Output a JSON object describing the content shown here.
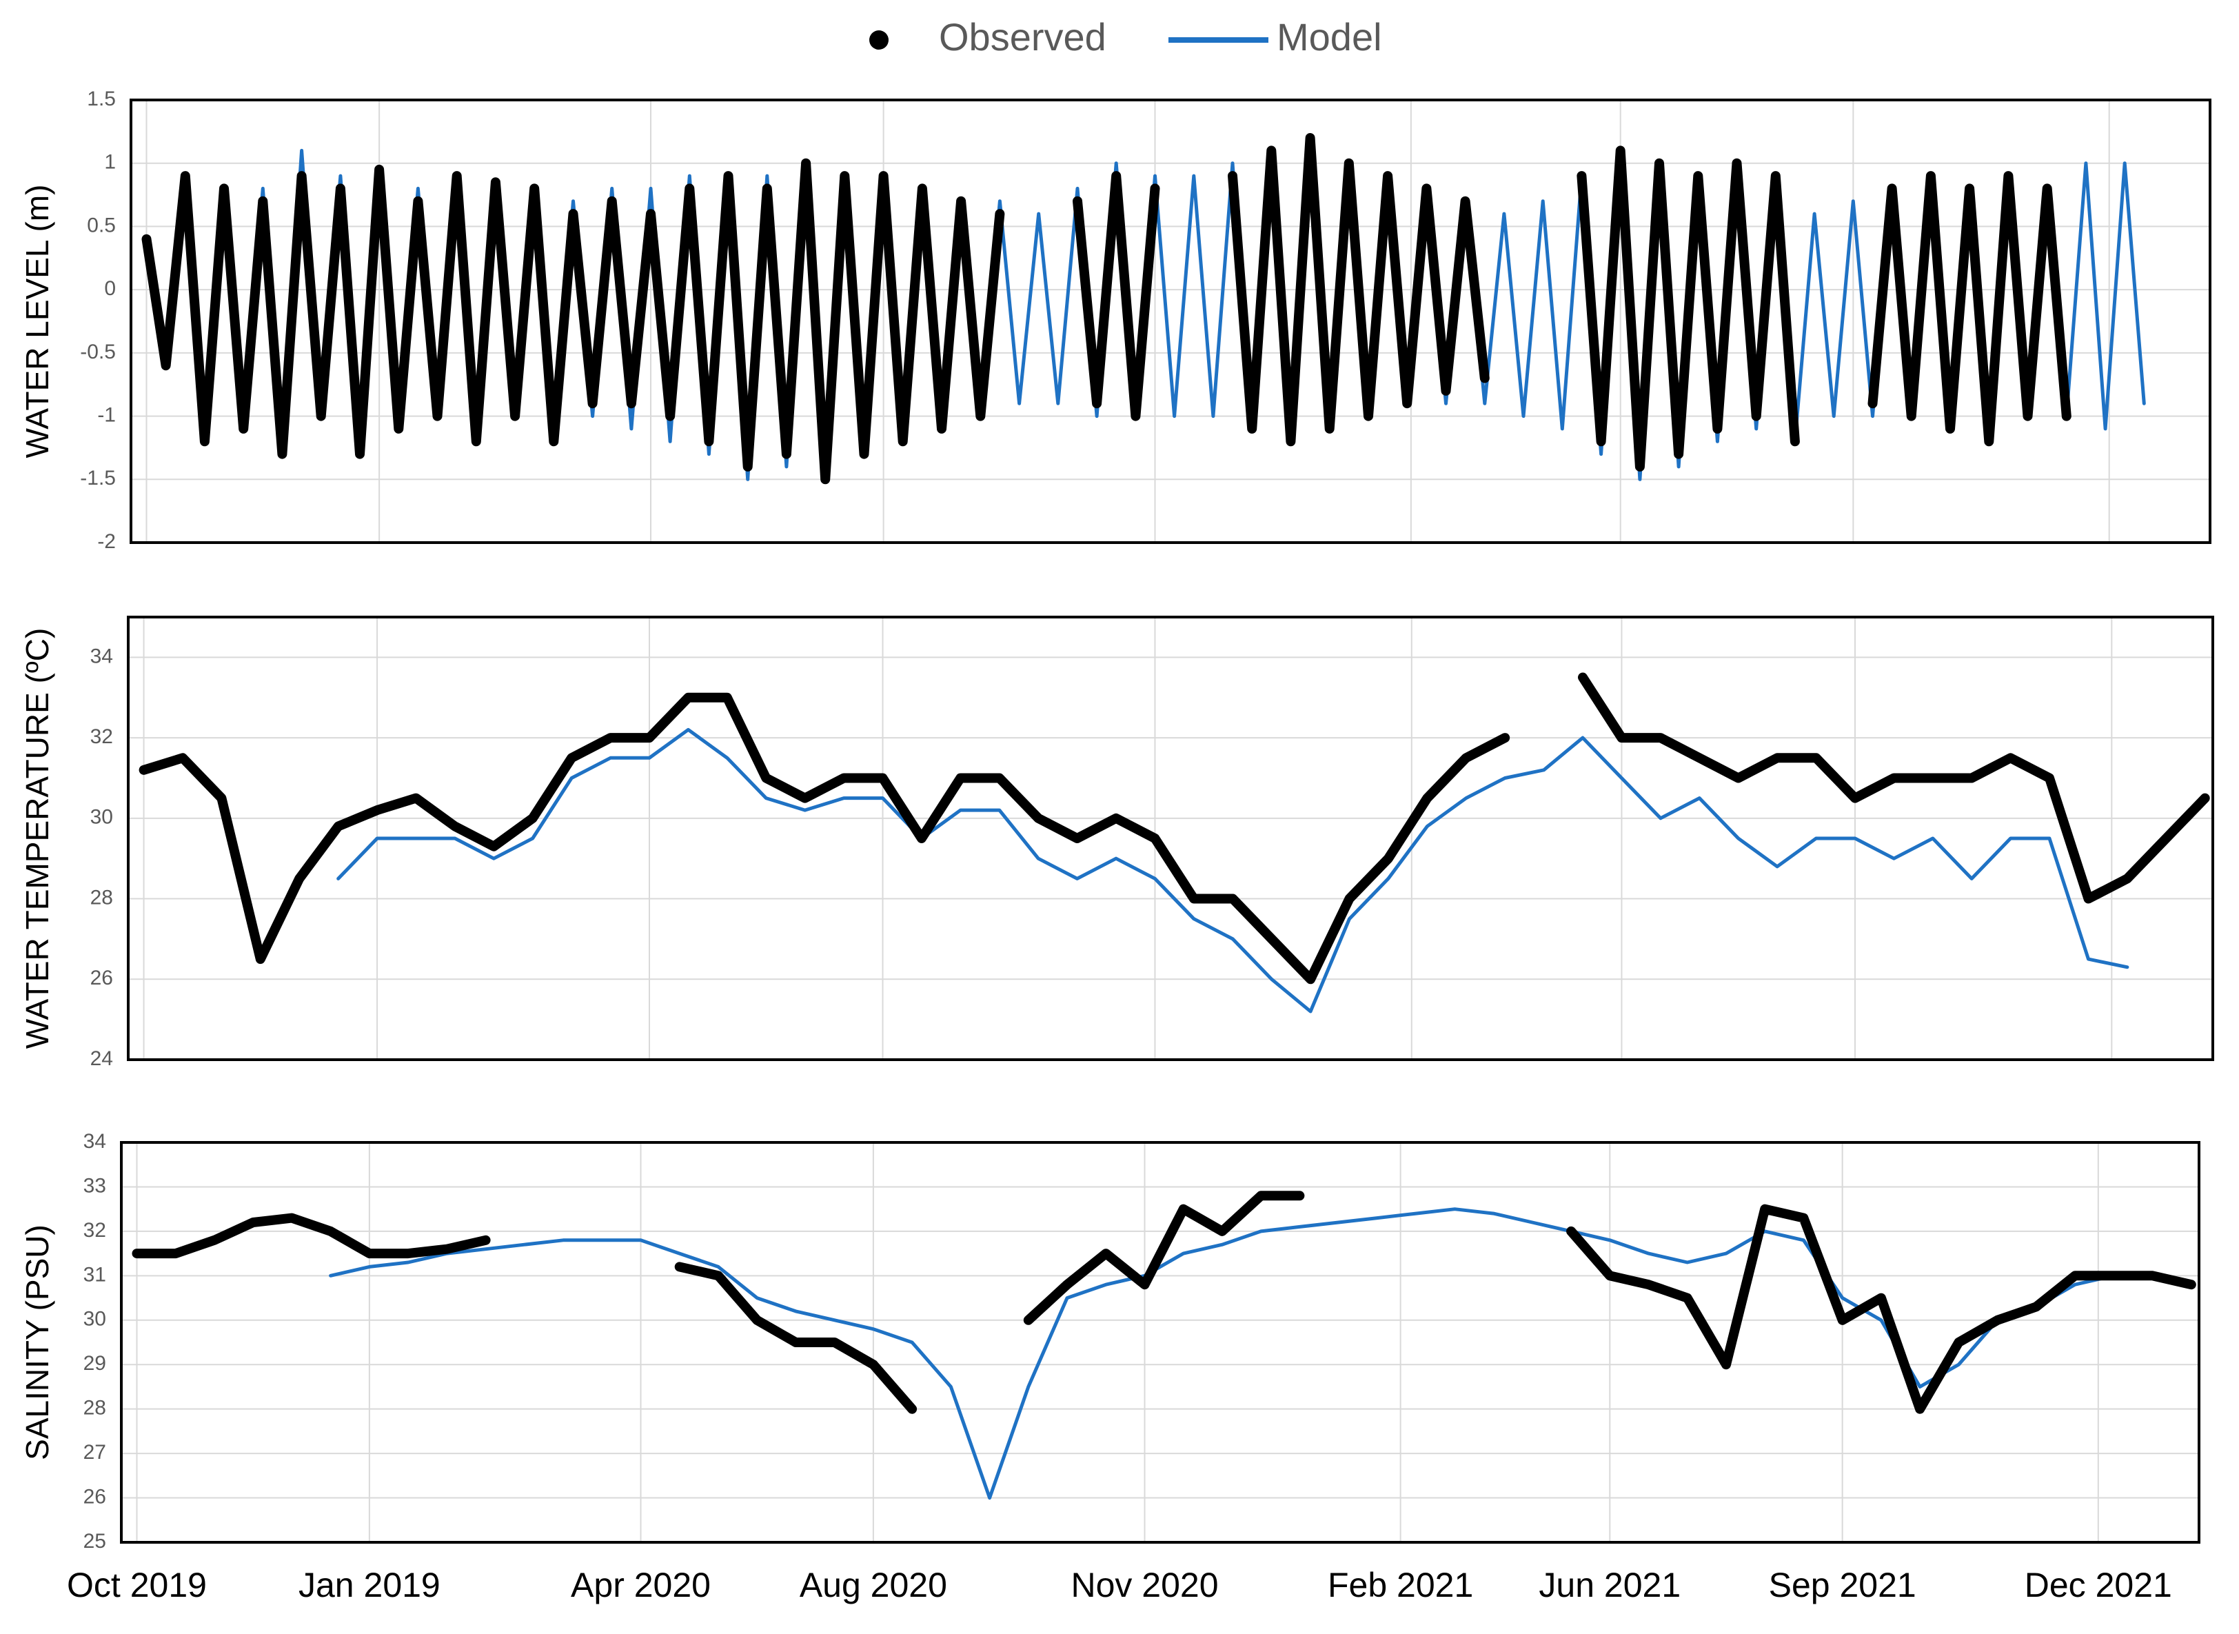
{
  "chart_data": [
    {
      "type": "line",
      "ylabel": "WATER LEVEL (m)",
      "grid": true,
      "ylim": [
        -2,
        1.5
      ],
      "yticks": [
        -2,
        -1.5,
        -1,
        -0.5,
        0,
        0.5,
        1,
        1.5
      ],
      "x": [
        0,
        0.25,
        0.5,
        0.75,
        1,
        1.25,
        1.5,
        1.75,
        2,
        2.25,
        2.5,
        2.75,
        3,
        3.25,
        3.5,
        3.75,
        4,
        4.25,
        4.5,
        4.75,
        5,
        5.25,
        5.5,
        5.75,
        6,
        6.25,
        6.5,
        6.75,
        7,
        7.25,
        7.5,
        7.75,
        8,
        8.25,
        8.5,
        8.75,
        9,
        9.25,
        9.5,
        9.75,
        10,
        10.25,
        10.5,
        10.75,
        11,
        11.25,
        11.5,
        11.75,
        12,
        12.25,
        12.5,
        12.75,
        13,
        13.25,
        13.5,
        13.75,
        14,
        14.25,
        14.5,
        14.75,
        15,
        15.25,
        15.5,
        15.75,
        16,
        16.25,
        16.5,
        16.75,
        17,
        17.25,
        17.5,
        17.75,
        18,
        18.25,
        18.5,
        18.75,
        19,
        19.25,
        19.5,
        19.75,
        20,
        20.25,
        20.5,
        20.75,
        21,
        21.25,
        21.5,
        21.75,
        22,
        22.25,
        22.5,
        22.75,
        23,
        23.25,
        23.5,
        23.75,
        24,
        24.25,
        24.5,
        24.75,
        25,
        25.25,
        25.5,
        25.75,
        26
      ],
      "series": [
        {
          "name": "Observed",
          "color": "#000000",
          "values": [
            0.4,
            -0.6,
            0.9,
            -1.2,
            0.8,
            -1.1,
            0.7,
            -1.3,
            0.9,
            -1.0,
            0.8,
            -1.3,
            0.95,
            -1.1,
            0.7,
            -1.0,
            0.9,
            -1.2,
            0.85,
            -1.0,
            0.8,
            -1.2,
            0.6,
            -0.9,
            0.7,
            -0.9,
            0.6,
            -1.0,
            0.8,
            -1.2,
            0.9,
            -1.4,
            0.8,
            -1.3,
            1.0,
            -1.5,
            0.9,
            -1.3,
            0.9,
            -1.2,
            0.8,
            -1.1,
            0.7,
            -1.0,
            0.6,
            null,
            null,
            null,
            0.7,
            -0.9,
            0.9,
            -1.0,
            0.8,
            null,
            null,
            null,
            0.9,
            -1.1,
            1.1,
            -1.2,
            1.2,
            -1.1,
            1.0,
            -1.0,
            0.9,
            -0.9,
            0.8,
            -0.8,
            0.7,
            -0.7,
            null,
            null,
            null,
            null,
            0.9,
            -1.2,
            1.1,
            -1.4,
            1.0,
            -1.3,
            0.9,
            -1.1,
            1.0,
            -1.0,
            0.9,
            -1.2,
            null,
            null,
            null,
            -0.9,
            0.8,
            -1.0,
            0.9,
            -1.1,
            0.8,
            -1.2,
            0.9,
            -1.0,
            0.8,
            -1.0,
            null,
            null,
            null,
            null,
            null
          ]
        },
        {
          "name": "Model",
          "color": "#1f72c4",
          "values": [
            0.3,
            -0.5,
            0.8,
            -1.1,
            0.7,
            -1.0,
            0.8,
            -1.2,
            1.1,
            -1.0,
            0.9,
            -1.2,
            0.9,
            -1.0,
            0.8,
            -1.0,
            0.9,
            -1.1,
            0.8,
            -1.0,
            0.8,
            -1.1,
            0.7,
            -1.0,
            0.8,
            -1.1,
            0.8,
            -1.2,
            0.9,
            -1.3,
            0.9,
            -1.5,
            0.9,
            -1.4,
            1.0,
            -1.4,
            0.9,
            -1.3,
            0.8,
            -1.2,
            0.8,
            -1.1,
            0.7,
            -1.0,
            0.7,
            -0.9,
            0.6,
            -0.9,
            0.8,
            -1.0,
            1.0,
            -1.0,
            0.9,
            -1.0,
            0.9,
            -1.0,
            1.0,
            -1.1,
            1.1,
            -1.2,
            1.1,
            -1.1,
            1.0,
            -1.0,
            0.9,
            -0.9,
            0.8,
            -0.9,
            0.7,
            -0.9,
            0.6,
            -1.0,
            0.7,
            -1.1,
            0.9,
            -1.3,
            1.0,
            -1.5,
            1.0,
            -1.4,
            0.9,
            -1.2,
            0.9,
            -1.1,
            0.9,
            -1.2,
            0.6,
            -1.0,
            0.7,
            -1.0,
            0.8,
            -1.0,
            0.9,
            -1.1,
            0.8,
            -1.2,
            0.9,
            -1.0,
            0.8,
            -1.0,
            1.0,
            -1.1,
            1.0,
            -0.9,
            null
          ]
        }
      ]
    },
    {
      "type": "line",
      "ylabel": "WATER TEMPERATURE (ºC)",
      "grid": true,
      "ylim": [
        24,
        35
      ],
      "yticks": [
        24,
        26,
        28,
        30,
        32,
        34
      ],
      "x": [
        0,
        0.5,
        1,
        1.5,
        2,
        2.5,
        3,
        3.5,
        4,
        4.5,
        5,
        5.5,
        6,
        6.5,
        7,
        7.5,
        8,
        8.5,
        9,
        9.5,
        10,
        10.5,
        11,
        11.5,
        12,
        12.5,
        13,
        13.5,
        14,
        14.5,
        15,
        15.5,
        16,
        16.5,
        17,
        17.5,
        18,
        18.5,
        19,
        19.5,
        20,
        20.5,
        21,
        21.5,
        22,
        22.5,
        23,
        23.5,
        24,
        24.5,
        25,
        25.5,
        26,
        26.5
      ],
      "series": [
        {
          "color": "#000000",
          "values": [
            31.2,
            31.5,
            30.5,
            26.5,
            28.5,
            29.8,
            30.2,
            30.5,
            29.8,
            29.3,
            30.0,
            31.5,
            32.0,
            32.0,
            33.0,
            33.0,
            31.0,
            30.5,
            31.0,
            31.0,
            29.5,
            31.0,
            31.0,
            30.0,
            29.5,
            30.0,
            29.5,
            28.0,
            28.0,
            27.0,
            26.0,
            28.0,
            29.0,
            30.5,
            31.5,
            32.0,
            null,
            33.5,
            32.0,
            32.0,
            31.5,
            31.0,
            31.5,
            31.5,
            30.5,
            31.0,
            31.0,
            31.0,
            31.5,
            31.0,
            28.0,
            28.5,
            29.5,
            30.5
          ]
        },
        {
          "color": "#1f72c4",
          "values": [
            null,
            null,
            null,
            null,
            null,
            28.5,
            29.5,
            29.5,
            29.5,
            29.0,
            29.5,
            31.0,
            31.5,
            31.5,
            32.2,
            31.5,
            30.5,
            30.2,
            30.5,
            30.5,
            29.5,
            30.2,
            30.2,
            29.0,
            28.5,
            29.0,
            28.5,
            27.5,
            27.0,
            26.0,
            25.2,
            27.5,
            28.5,
            29.8,
            30.5,
            31.0,
            31.2,
            32.0,
            31.0,
            30.0,
            30.5,
            29.5,
            28.8,
            29.5,
            29.5,
            29.0,
            29.5,
            28.5,
            29.5,
            29.5,
            26.5,
            26.3,
            null,
            null
          ]
        }
      ]
    },
    {
      "type": "line",
      "ylabel": "SALINITY (PSU)",
      "grid": true,
      "ylim": [
        25,
        34
      ],
      "yticks": [
        25,
        26,
        27,
        28,
        29,
        30,
        31,
        32,
        33,
        34
      ],
      "xlim": [
        -0.2,
        26.6
      ],
      "xticks": [
        {
          "value": 0,
          "label": "Oct 2019"
        },
        {
          "value": 3,
          "label": "Jan 2019"
        },
        {
          "value": 6.5,
          "label": "Apr 2020"
        },
        {
          "value": 9.5,
          "label": "Aug 2020"
        },
        {
          "value": 13,
          "label": "Nov 2020"
        },
        {
          "value": 16.3,
          "label": "Feb 2021"
        },
        {
          "value": 19,
          "label": "Jun 2021"
        },
        {
          "value": 22,
          "label": "Sep 2021"
        },
        {
          "value": 25.3,
          "label": "Dec 2021"
        }
      ],
      "x": [
        0,
        0.5,
        1,
        1.5,
        2,
        2.5,
        3,
        3.5,
        4,
        4.5,
        5,
        5.5,
        6,
        6.5,
        7,
        7.5,
        8,
        8.5,
        9,
        9.5,
        10,
        10.5,
        11,
        11.5,
        12,
        12.5,
        13,
        13.5,
        14,
        14.5,
        15,
        15.5,
        16,
        16.5,
        17,
        17.5,
        18,
        18.5,
        19,
        19.5,
        20,
        20.5,
        21,
        21.5,
        22,
        22.5,
        23,
        23.5,
        24,
        24.5,
        25,
        25.5,
        26,
        26.5
      ],
      "series": [
        {
          "color": "#000000",
          "values": [
            31.5,
            31.5,
            31.8,
            32.2,
            32.3,
            32.0,
            31.5,
            31.5,
            31.6,
            31.8,
            null,
            null,
            null,
            null,
            31.2,
            31.0,
            30.0,
            29.5,
            29.5,
            29.0,
            28.0,
            null,
            null,
            30.0,
            30.8,
            31.5,
            30.8,
            32.5,
            32.0,
            32.8,
            32.8,
            null,
            null,
            null,
            null,
            null,
            null,
            32.0,
            31.0,
            30.8,
            30.5,
            29.0,
            32.5,
            32.3,
            30.0,
            30.5,
            28.0,
            29.5,
            30.0,
            30.3,
            31.0,
            31.0,
            31.0,
            30.8
          ]
        },
        {
          "color": "#1f72c4",
          "values": [
            null,
            null,
            null,
            null,
            null,
            31.0,
            31.2,
            31.3,
            31.5,
            31.6,
            31.7,
            31.8,
            31.8,
            31.8,
            31.5,
            31.2,
            30.5,
            30.2,
            30.0,
            29.8,
            29.5,
            28.5,
            26.0,
            28.5,
            30.5,
            30.8,
            31.0,
            31.5,
            31.7,
            32.0,
            32.1,
            32.2,
            32.3,
            32.4,
            32.5,
            32.4,
            32.2,
            32.0,
            31.8,
            31.5,
            31.3,
            31.5,
            32.0,
            31.8,
            30.5,
            30.0,
            28.5,
            29.0,
            30.0,
            30.3,
            30.8,
            31.0,
            31.0,
            30.8
          ]
        }
      ]
    }
  ]
}
